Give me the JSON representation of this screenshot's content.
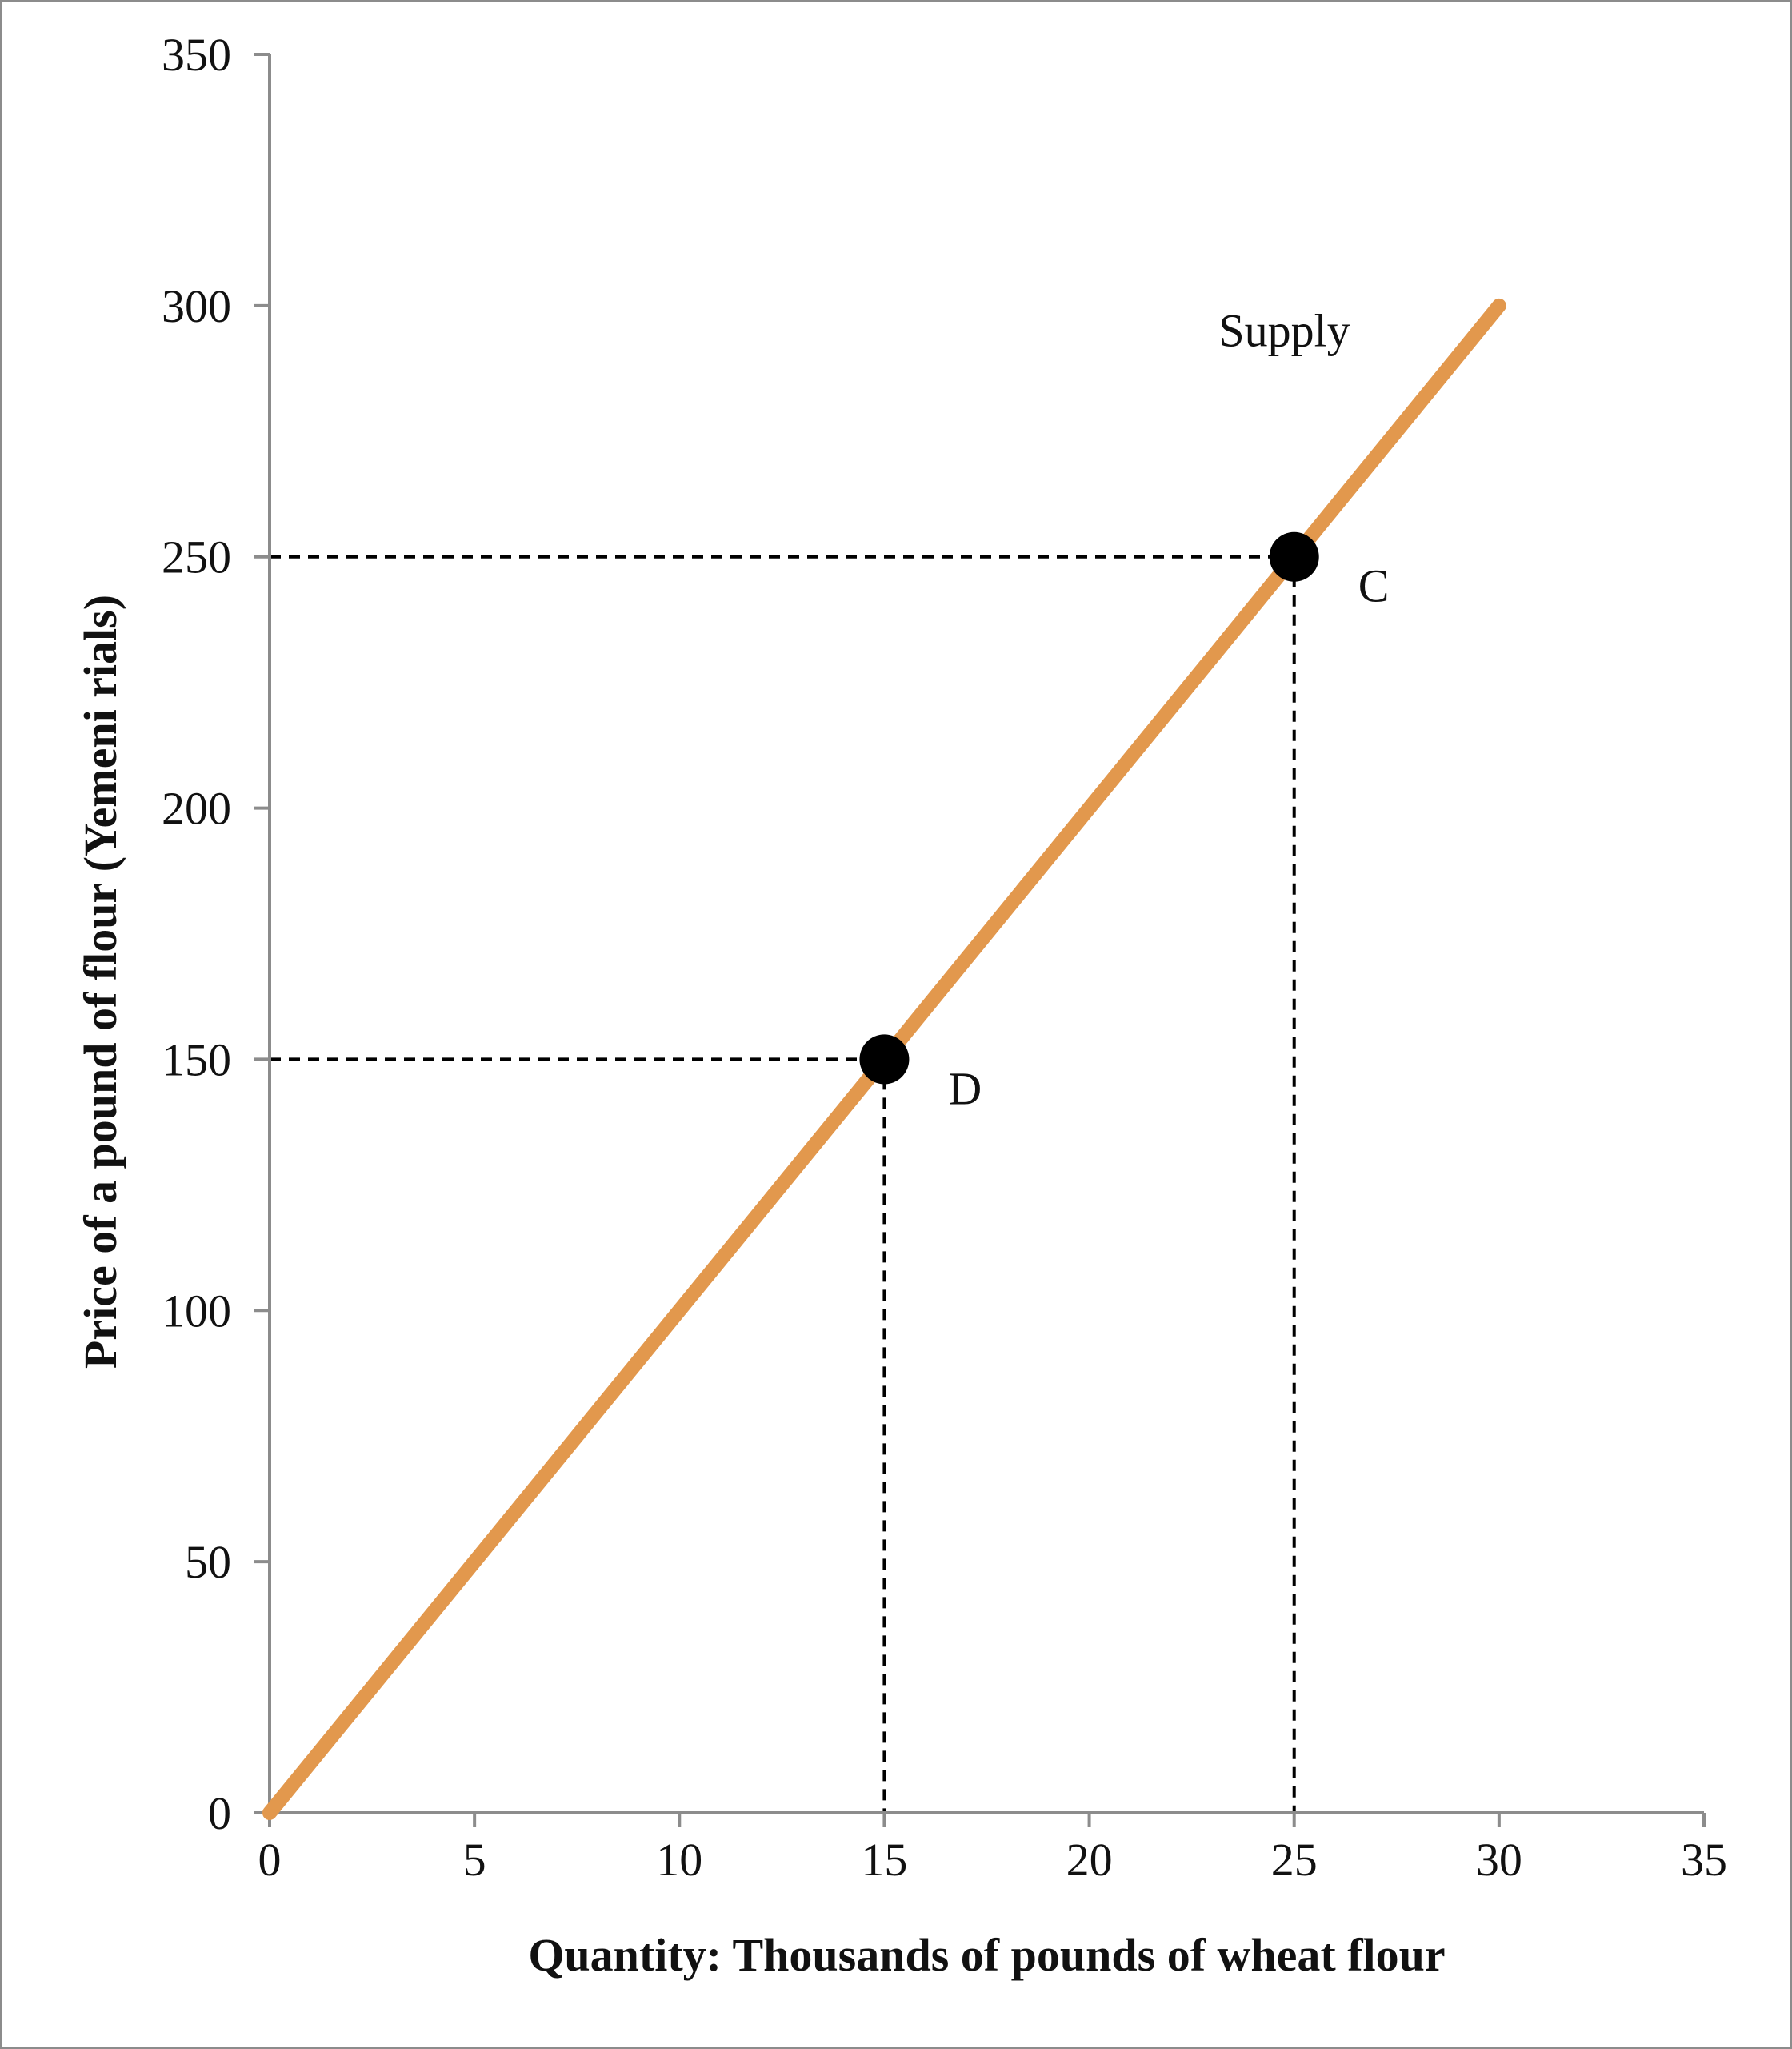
{
  "chart_data": {
    "type": "line",
    "xlabel": "Quantity: Thousands of pounds of wheat flour",
    "ylabel": "Price of a pound of flour (Yemeni rials)",
    "xlim": [
      0,
      35
    ],
    "ylim": [
      0,
      350
    ],
    "xticks": [
      0,
      5,
      10,
      15,
      20,
      25,
      30,
      35
    ],
    "yticks": [
      0,
      50,
      100,
      150,
      200,
      250,
      300,
      350
    ],
    "xtick_labels": [
      "0",
      "5",
      "10",
      "15",
      "20",
      "25",
      "30",
      "35"
    ],
    "ytick_labels": [
      "0",
      "50",
      "100",
      "150",
      "200",
      "250",
      "300",
      "350"
    ],
    "grid": false,
    "series": [
      {
        "name": "Supply",
        "color": "#E2984D",
        "x": [
          0,
          30
        ],
        "y": [
          0,
          300
        ]
      }
    ],
    "points": [
      {
        "label": "D",
        "x": 15,
        "y": 150
      },
      {
        "label": "C",
        "x": 25,
        "y": 250
      }
    ],
    "annotations": [
      {
        "text": "Supply",
        "x": 25.5,
        "y": 290
      }
    ]
  }
}
